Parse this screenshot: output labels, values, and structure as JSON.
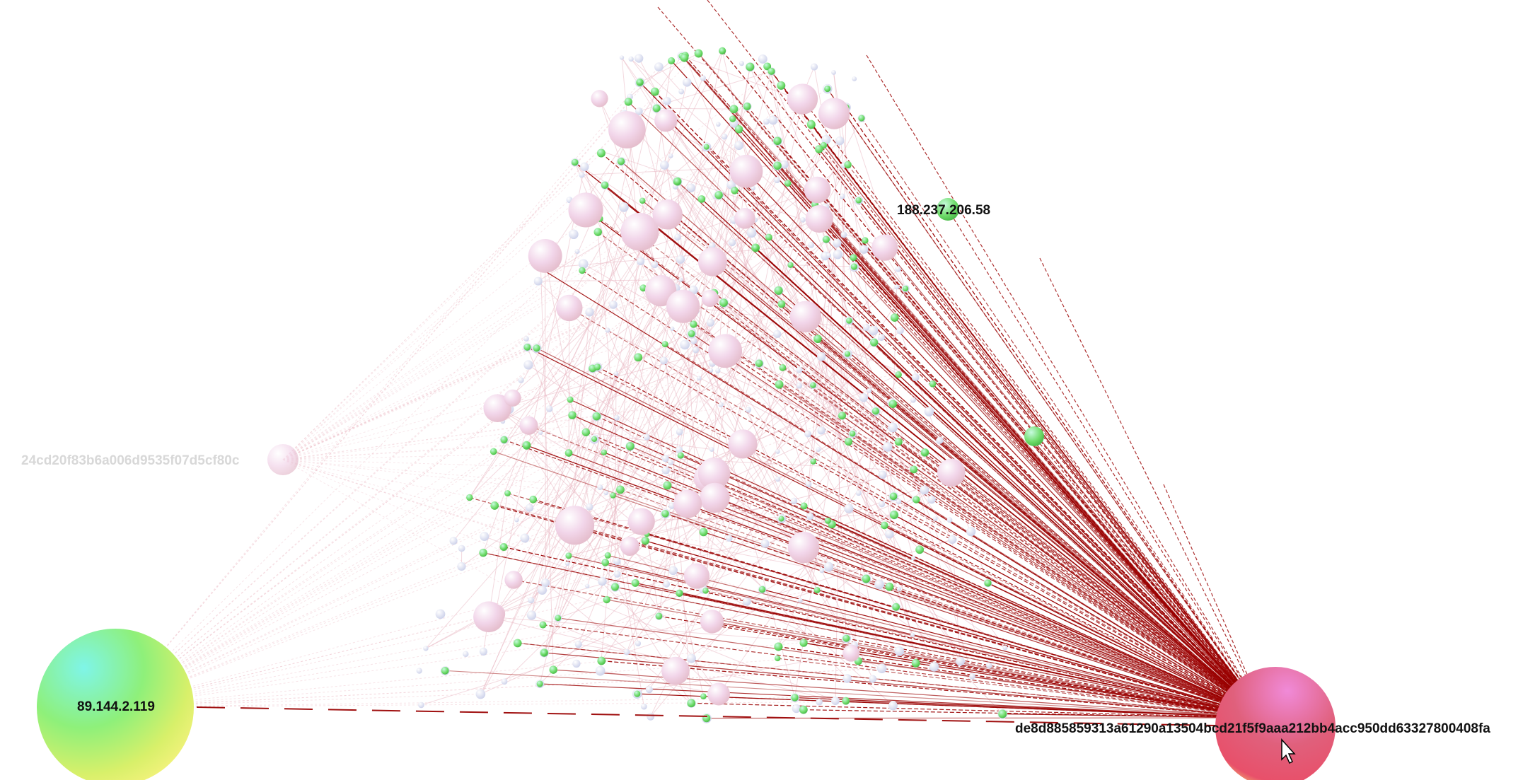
{
  "nodes": [
    {
      "label": "188.237.206.58"
    },
    {
      "label": "24cd20f83b6a006d9535f07d5cf80c"
    },
    {
      "label": "89.144.2.119"
    },
    {
      "label": "de8d885859313a61290a13504bcd21f5f9aaa212bb4acc950dd63327800408fa"
    }
  ]
}
